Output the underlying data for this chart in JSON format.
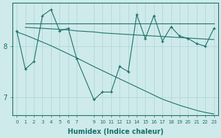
{
  "xlabel": "Humidex (Indice chaleur)",
  "bg_color": "#ceeaea",
  "line_color": "#1a6e6a",
  "grid_color": "#aed4d4",
  "tick_color": "#1a6e6a",
  "xlim_min": -0.5,
  "xlim_max": 23.5,
  "ylim_min": 6.65,
  "ylim_max": 8.85,
  "yticks": [
    7,
    8
  ],
  "xticks": [
    0,
    1,
    2,
    3,
    4,
    5,
    6,
    7,
    9,
    10,
    11,
    12,
    13,
    14,
    15,
    16,
    17,
    18,
    19,
    20,
    21,
    22,
    23
  ],
  "line_zigzag_x": [
    0,
    1,
    2,
    3,
    4,
    5,
    6,
    7,
    9,
    10,
    11,
    12,
    13,
    14,
    15,
    16,
    17,
    18,
    19,
    20,
    21,
    22,
    23
  ],
  "line_zigzag_y": [
    8.3,
    7.55,
    7.7,
    8.6,
    8.72,
    8.3,
    8.35,
    7.75,
    6.95,
    7.1,
    7.1,
    7.6,
    7.5,
    8.62,
    8.15,
    8.6,
    8.1,
    8.38,
    8.2,
    8.15,
    8.05,
    8.0,
    8.35
  ],
  "line_flat1_x": [
    1,
    2,
    3,
    4,
    5,
    6,
    7,
    9,
    10,
    11,
    12,
    13,
    14,
    15,
    16,
    17,
    18,
    19,
    20,
    21,
    22,
    23
  ],
  "line_flat1_y": [
    8.44,
    8.44,
    8.44,
    8.44,
    8.44,
    8.44,
    8.44,
    8.44,
    8.44,
    8.44,
    8.44,
    8.44,
    8.44,
    8.44,
    8.44,
    8.44,
    8.44,
    8.44,
    8.44,
    8.44,
    8.44,
    8.44
  ],
  "line_flat2_x": [
    1,
    2,
    3,
    4,
    5,
    6,
    7,
    9,
    10,
    11,
    12,
    13,
    14,
    15,
    16,
    17,
    18,
    19,
    20,
    21,
    22,
    23
  ],
  "line_flat2_y": [
    8.37,
    8.36,
    8.35,
    8.34,
    8.33,
    8.32,
    8.3,
    8.28,
    8.26,
    8.25,
    8.24,
    8.23,
    8.22,
    8.21,
    8.2,
    8.19,
    8.18,
    8.17,
    8.16,
    8.15,
    8.14,
    8.13
  ],
  "line_descent_x": [
    0,
    1,
    2,
    3,
    4,
    5,
    6,
    7,
    9,
    10,
    11,
    12,
    13,
    14,
    15,
    16,
    17,
    18,
    19,
    20,
    21,
    22,
    23
  ],
  "line_descent_y": [
    8.28,
    8.22,
    8.15,
    8.08,
    8.01,
    7.93,
    7.85,
    7.77,
    7.6,
    7.52,
    7.44,
    7.36,
    7.28,
    7.2,
    7.12,
    7.04,
    6.96,
    6.9,
    6.84,
    6.79,
    6.74,
    6.7,
    6.67
  ]
}
